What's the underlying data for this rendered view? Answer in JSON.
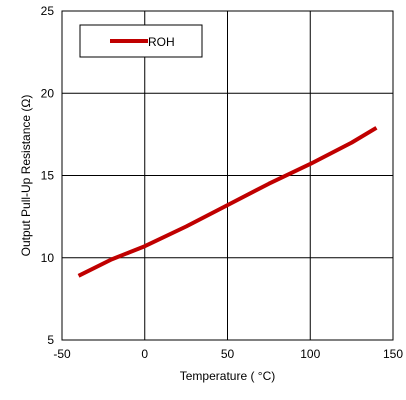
{
  "chart_data": {
    "type": "line",
    "title": "",
    "xlabel": "Temperature ( °C)",
    "ylabel": "Output Pull-Up Resistance (Ω)",
    "xlim": [
      -50,
      150
    ],
    "ylim": [
      5,
      25
    ],
    "xticks": [
      -50,
      0,
      50,
      100,
      150
    ],
    "yticks": [
      5,
      10,
      15,
      20,
      25
    ],
    "grid": true,
    "legend_position": "top-left",
    "series": [
      {
        "name": "ROH",
        "color": "#c00000",
        "x": [
          -40,
          -20,
          0,
          25,
          50,
          75,
          100,
          125,
          140
        ],
        "y": [
          8.9,
          9.9,
          10.7,
          11.9,
          13.2,
          14.5,
          15.7,
          17.0,
          17.9
        ]
      }
    ]
  }
}
